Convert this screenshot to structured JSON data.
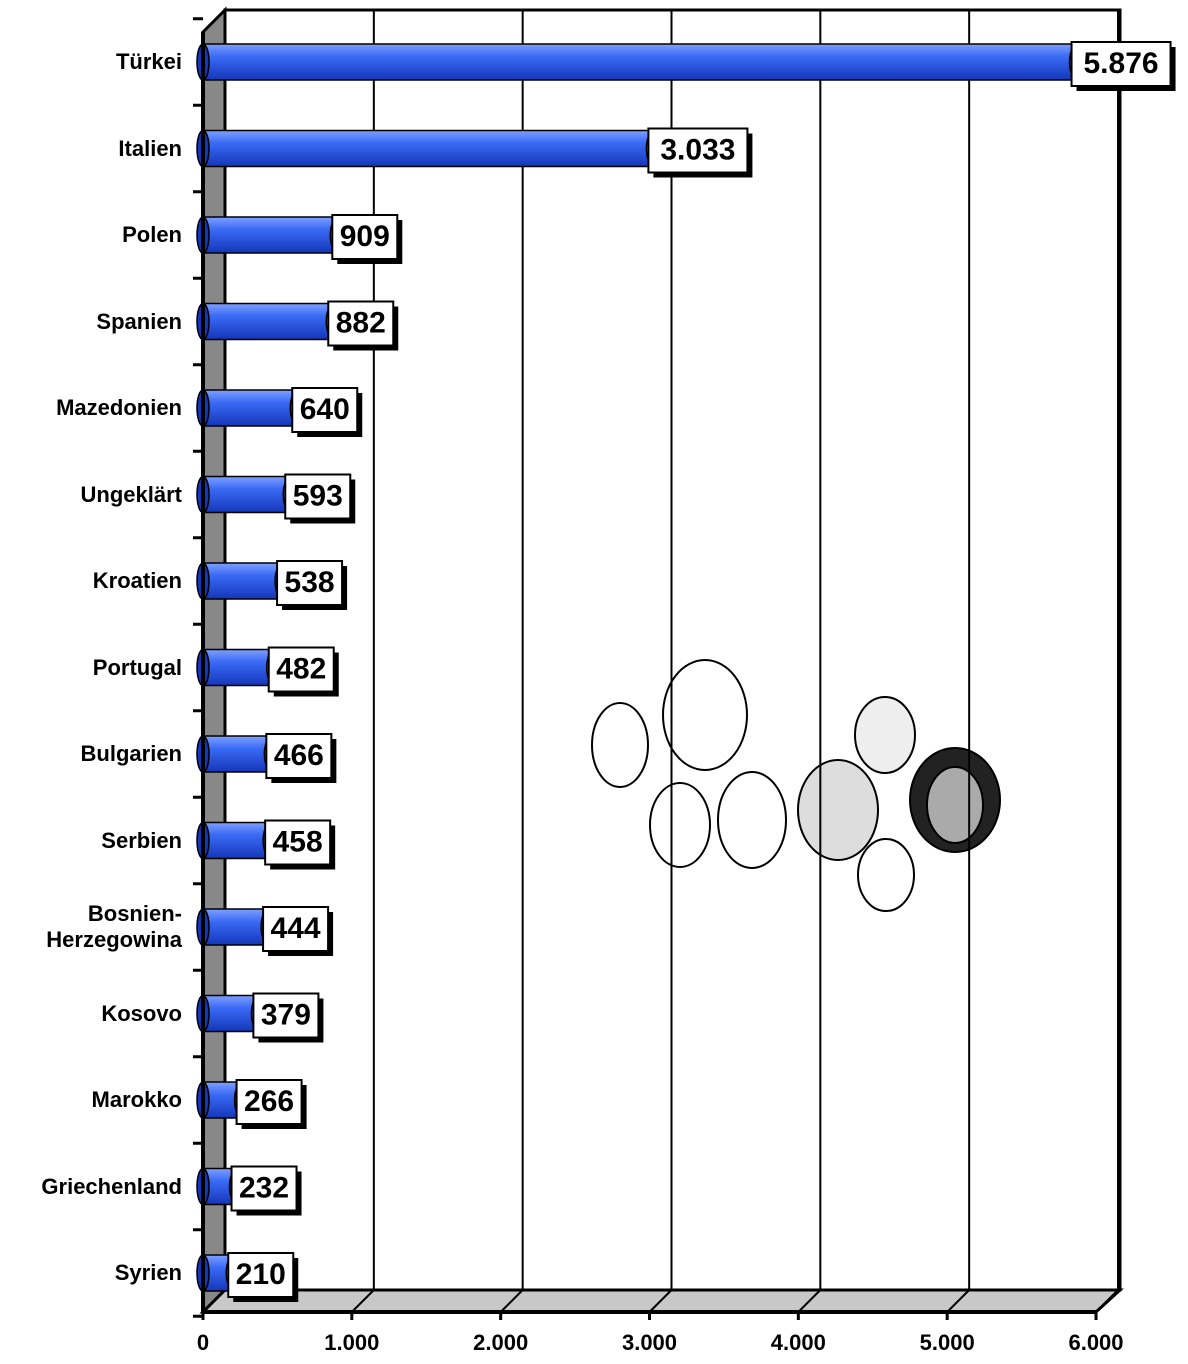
{
  "chart_data": {
    "type": "bar",
    "orientation": "horizontal",
    "color": "#2f5ff0",
    "categories": [
      "Türkei",
      "Italien",
      "Polen",
      "Spanien",
      "Mazedonien",
      "Ungeklärt",
      "Kroatien",
      "Portugal",
      "Bulgarien",
      "Serbien",
      "Bosnien-Herzegowina",
      "Kosovo",
      "Marokko",
      "Griechenland",
      "Syrien"
    ],
    "values": [
      5876,
      3033,
      909,
      882,
      640,
      593,
      538,
      482,
      466,
      458,
      444,
      379,
      266,
      232,
      210
    ],
    "value_labels": [
      "5.876",
      "3.033",
      "909",
      "882",
      "640",
      "593",
      "538",
      "482",
      "466",
      "458",
      "444",
      "379",
      "266",
      "232",
      "210"
    ],
    "xlim": [
      0,
      6000
    ],
    "xticks": [
      0,
      {
        "value": 1000,
        "label": "1.000"
      },
      {
        "value": 2000,
        "label": "2.000"
      },
      {
        "value": 3000,
        "label": "3.000"
      },
      {
        "value": 4000,
        "label": "4.000"
      },
      {
        "value": 5000,
        "label": "5.000"
      },
      {
        "value": 6000,
        "label": "6.000"
      }
    ],
    "grid": true
  }
}
